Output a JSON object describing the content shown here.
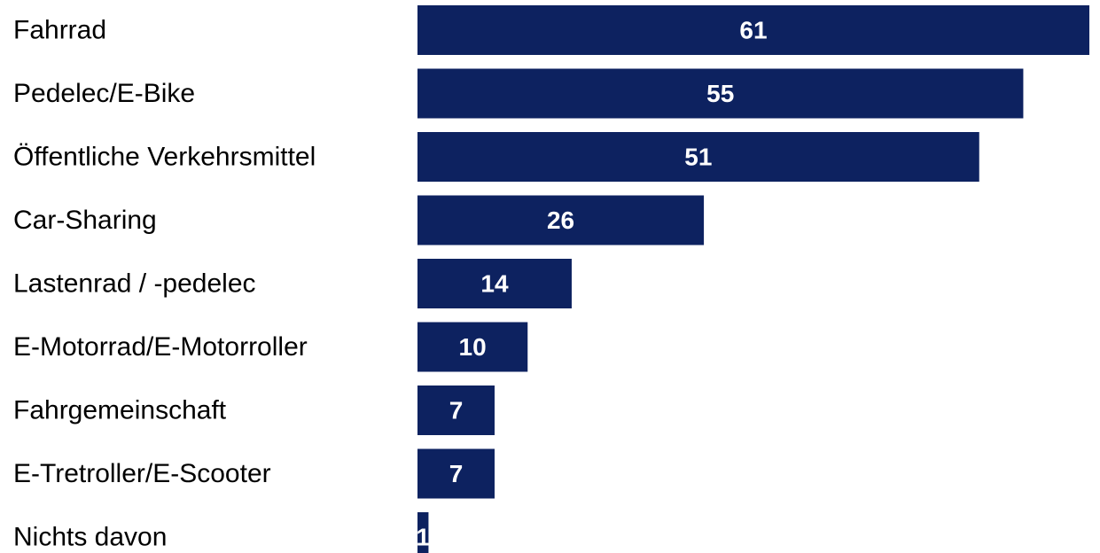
{
  "chart_data": {
    "type": "bar",
    "orientation": "horizontal",
    "categories": [
      "Fahrrad",
      "Pedelec/E-Bike",
      "Öffentliche Verkehrsmittel",
      "Car-Sharing",
      "Lastenrad / -pedelec",
      "E-Motorrad/E-Motorroller",
      "Fahrgemeinschaft",
      "E-Tretroller/E-Scooter",
      "Nichts davon"
    ],
    "values": [
      61,
      55,
      51,
      26,
      14,
      10,
      7,
      7,
      1
    ],
    "title": "",
    "xlabel": "",
    "ylabel": "",
    "xlim": [
      0,
      61
    ],
    "grid": false,
    "legend": "none",
    "bar_color": "#0d2260",
    "value_label_color": "#ffffff"
  }
}
